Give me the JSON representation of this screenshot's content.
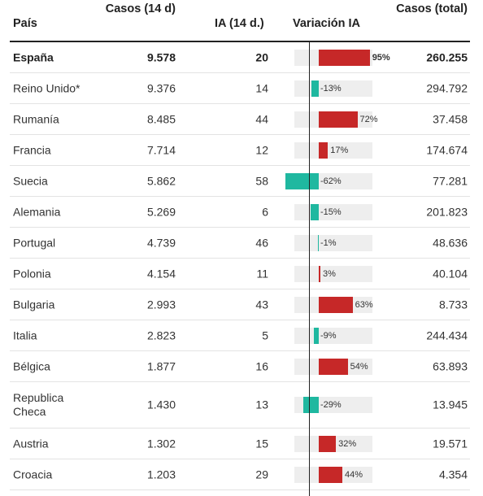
{
  "headers": {
    "pais": "País",
    "casos14": "Casos (14 d)",
    "ia": "IA (14 d.)",
    "variacion": "Variación IA",
    "total": "Casos (total)"
  },
  "colors": {
    "positive": "#c62828",
    "negative": "#1fb8a0",
    "bar_bg": "#eeeeee"
  },
  "chart_data": {
    "type": "table",
    "columns": [
      "País",
      "Casos (14 d)",
      "IA (14 d.)",
      "Variación IA",
      "Casos (total)"
    ],
    "variation_scale_max_pct": 100,
    "rows": [
      {
        "pais": "España",
        "casos14": "9.578",
        "ia": "20",
        "var": 95,
        "var_label": "95%",
        "total": "260.255",
        "bold": true
      },
      {
        "pais": "Reino Unido*",
        "casos14": "9.376",
        "ia": "14",
        "var": -13,
        "var_label": "-13%",
        "total": "294.792"
      },
      {
        "pais": "Rumanía",
        "casos14": "8.485",
        "ia": "44",
        "var": 72,
        "var_label": "72%",
        "total": "37.458"
      },
      {
        "pais": "Francia",
        "casos14": "7.714",
        "ia": "12",
        "var": 17,
        "var_label": "17%",
        "total": "174.674"
      },
      {
        "pais": "Suecia",
        "casos14": "5.862",
        "ia": "58",
        "var": -62,
        "var_label": "-62%",
        "total": "77.281"
      },
      {
        "pais": "Alemania",
        "casos14": "5.269",
        "ia": "6",
        "var": -15,
        "var_label": "-15%",
        "total": "201.823"
      },
      {
        "pais": "Portugal",
        "casos14": "4.739",
        "ia": "46",
        "var": -1,
        "var_label": "-1%",
        "total": "48.636"
      },
      {
        "pais": "Polonia",
        "casos14": "4.154",
        "ia": "11",
        "var": 3,
        "var_label": "3%",
        "total": "40.104"
      },
      {
        "pais": "Bulgaria",
        "casos14": "2.993",
        "ia": "43",
        "var": 63,
        "var_label": "63%",
        "total": "8.733"
      },
      {
        "pais": "Italia",
        "casos14": "2.823",
        "ia": "5",
        "var": -9,
        "var_label": "-9%",
        "total": "244.434"
      },
      {
        "pais": "Bélgica",
        "casos14": "1.877",
        "ia": "16",
        "var": 54,
        "var_label": "54%",
        "total": "63.893"
      },
      {
        "pais": "Republica Checa",
        "casos14": "1.430",
        "ia": "13",
        "var": -29,
        "var_label": "-29%",
        "total": "13.945",
        "tall": true
      },
      {
        "pais": "Austria",
        "casos14": "1.302",
        "ia": "15",
        "var": 32,
        "var_label": "32%",
        "total": "19.571"
      },
      {
        "pais": "Croacia",
        "casos14": "1.203",
        "ia": "29",
        "var": 44,
        "var_label": "44%",
        "total": "4.354"
      }
    ]
  }
}
